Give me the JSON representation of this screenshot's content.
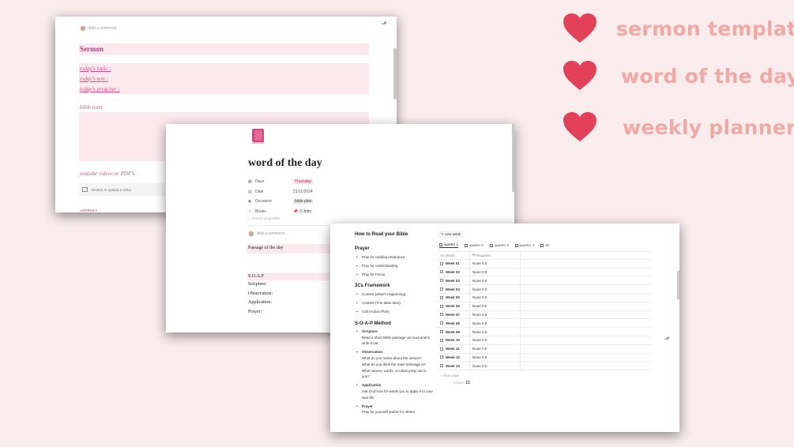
{
  "features": [
    {
      "label": "sermon template",
      "icon": "heart-icon",
      "color": "#e3415a"
    },
    {
      "label": "word of the day",
      "icon": "heart-icon",
      "color": "#e3415a"
    },
    {
      "label": "weekly planner",
      "icon": "heart-icon",
      "color": "#e3415a"
    }
  ],
  "sermon": {
    "comment_placeholder": "Add a comment...",
    "heading": "Sermon",
    "fields": [
      "today's topic :",
      "today's text :",
      "today's preacher :"
    ],
    "bible_texts_label": "bible texts",
    "youtube_label": "youtube videos or PDF's",
    "embed_text": "Embed or upload a video",
    "summary_label": "summary"
  },
  "wotd": {
    "title": "word of the day",
    "properties": [
      {
        "icon": "▦",
        "name": "Days",
        "value": "Thursday",
        "style": "tag"
      },
      {
        "icon": "▤",
        "name": "Date",
        "value": "21/11/2024",
        "style": "plain"
      },
      {
        "icon": "◉",
        "name": "Occasion",
        "value": "bible plan",
        "style": "grey"
      },
      {
        "icon": "↗",
        "name": "Books",
        "value": "3 John",
        "style": "rel"
      }
    ],
    "more_props": "3 more properties",
    "comment_placeholder": "Add a comment...",
    "passage_label": "Passage of the day",
    "soap_label": "S.O.A.P",
    "soap_lines": [
      "Scripture:",
      "Observation:",
      "Application:",
      "Prayer:"
    ]
  },
  "planner": {
    "title": "How to Read your Bible",
    "sections": [
      {
        "heading": "Prayer",
        "items": [
          "Pray for reading endurance",
          "Pray for understanding",
          "Pray for Focus"
        ]
      },
      {
        "heading": "3Cs Framework",
        "items": [
          "Context (what's Happening)",
          "Content (The Main Idea)",
          "Call (Action Plan)"
        ]
      }
    ],
    "soap_heading": "S-O-A-P Method",
    "soap_items": [
      {
        "title": "Scripture",
        "desc": [
          "Read a short Bible passage out loud and/or write it out."
        ]
      },
      {
        "title": "Observation",
        "desc": [
          "What do you notice about the verses?",
          "What do you think the main message is?",
          "What verses, words, or ideas jump out to you?"
        ]
      },
      {
        "title": "Application",
        "desc": [
          "Ask God how he wants you to apply it to your own life."
        ]
      },
      {
        "title": "Prayer",
        "desc": [
          "Pray for yourself and/or for others."
        ]
      }
    ],
    "new_week": "new week",
    "tabs": [
      "quarter 1",
      "quarter 2",
      "quarter 3",
      "quarter 4",
      "all"
    ],
    "columns": [
      "Aa Name",
      "Progress"
    ],
    "rows": [
      {
        "name": "Week 01",
        "progress": "None 0.0"
      },
      {
        "name": "Week 02",
        "progress": "None 0.0"
      },
      {
        "name": "Week 03",
        "progress": "None 0.0"
      },
      {
        "name": "Week 04",
        "progress": "None 0.0"
      },
      {
        "name": "Week 05",
        "progress": "None 0.0"
      },
      {
        "name": "Week 06",
        "progress": "None 0.0"
      },
      {
        "name": "Week 07",
        "progress": "None 0.0"
      },
      {
        "name": "Week 08",
        "progress": "None 0.0"
      },
      {
        "name": "Week 09",
        "progress": "None 0.0"
      },
      {
        "name": "Week 10",
        "progress": "None 0.0"
      },
      {
        "name": "Week 11",
        "progress": "None 0.0"
      },
      {
        "name": "Week 12",
        "progress": "None 0.0"
      },
      {
        "name": "Week 13",
        "progress": "None 0.0"
      }
    ],
    "new_page": "New page",
    "count_label": "COUNT",
    "count_value": "13"
  }
}
